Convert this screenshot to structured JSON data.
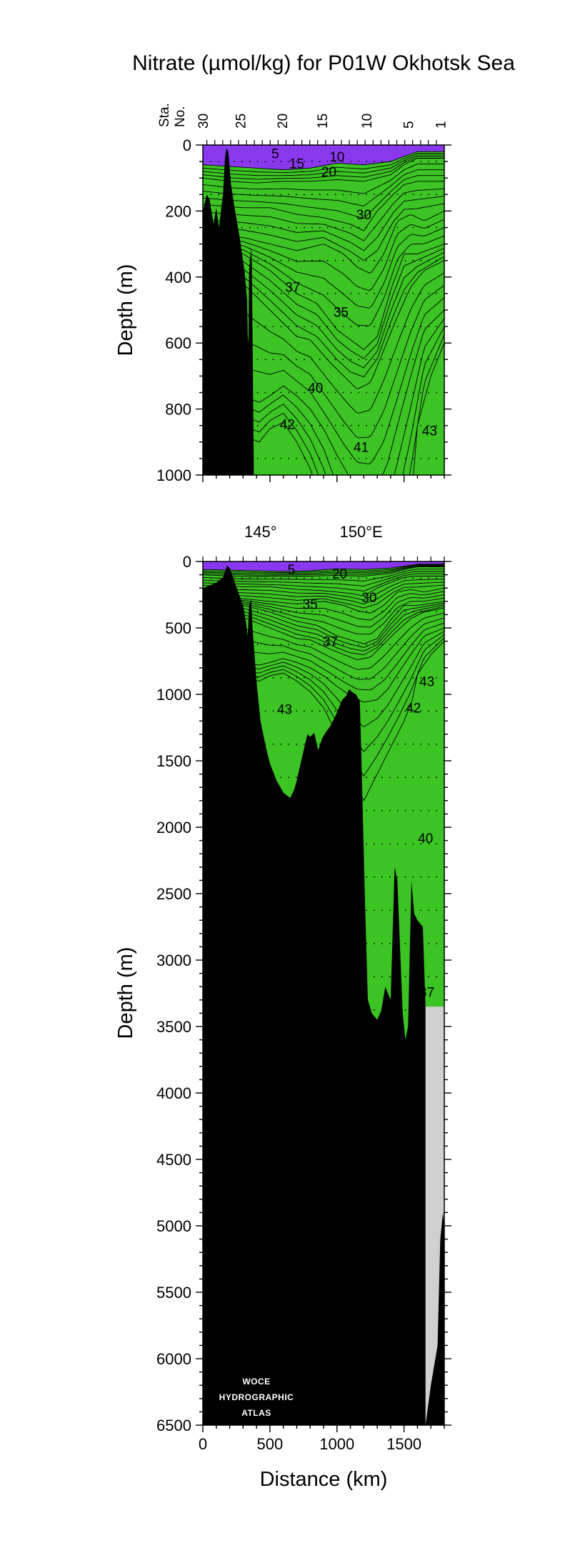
{
  "title": "Nitrate (µmol/kg) for P01W Okhotsk Sea",
  "logo": {
    "line1": "WOCE",
    "line2": "HYDROGRAPHIC",
    "line3": "ATLAS"
  },
  "colors": {
    "nitrate_0_10": "#3cc424",
    "nitrate_10_20": "#59d13a",
    "nitrate_20_30": "#7fdd5e",
    "nitrate_30_35": "#b9f0a6",
    "nitrate_35_37": "#e9d8f8",
    "nitrate_37_40": "#d4b2f6",
    "nitrate_40_42": "#b47cf4",
    "nitrate_42_43": "#9a55f0",
    "nitrate_43_plus": "#8a38ee",
    "bottom": "#000000",
    "no_data": "#d0d0d0"
  },
  "chart_data": [
    {
      "type": "heatmap",
      "name": "upper-section",
      "title": "Nitrate (µmol/kg) for P01W Okhotsk Sea",
      "ylabel": "Depth (m)",
      "xlabel": "",
      "xlim": [
        0,
        1800
      ],
      "ylim": [
        1000,
        0
      ],
      "y_ticks": [
        0,
        200,
        400,
        600,
        800,
        1000
      ],
      "station_axis_label": [
        "Sta.",
        "No."
      ],
      "station_ticks": [
        {
          "label": "30",
          "km": 0
        },
        {
          "label": "25",
          "km": 280
        },
        {
          "label": "20",
          "km": 590
        },
        {
          "label": "15",
          "km": 890
        },
        {
          "label": "10",
          "km": 1220
        },
        {
          "label": "5",
          "km": 1530
        },
        {
          "label": "1",
          "km": 1770
        }
      ],
      "contour_labels": [
        {
          "text": "5",
          "km": 540,
          "depth": 25
        },
        {
          "text": "10",
          "km": 1000,
          "depth": 35
        },
        {
          "text": "15",
          "km": 700,
          "depth": 55
        },
        {
          "text": "20",
          "km": 940,
          "depth": 80
        },
        {
          "text": "30",
          "km": 1200,
          "depth": 210
        },
        {
          "text": "37",
          "km": 670,
          "depth": 430
        },
        {
          "text": "35",
          "km": 1030,
          "depth": 505
        },
        {
          "text": "40",
          "km": 840,
          "depth": 735
        },
        {
          "text": "42",
          "km": 630,
          "depth": 845
        },
        {
          "text": "41",
          "km": 1180,
          "depth": 915
        },
        {
          "text": "43",
          "km": 1690,
          "depth": 865
        }
      ],
      "bottom_profile": [
        [
          0,
          200
        ],
        [
          30,
          150
        ],
        [
          50,
          165
        ],
        [
          80,
          240
        ],
        [
          100,
          190
        ],
        [
          120,
          250
        ],
        [
          150,
          150
        ],
        [
          165,
          40
        ],
        [
          175,
          10
        ],
        [
          190,
          20
        ],
        [
          210,
          120
        ],
        [
          240,
          200
        ],
        [
          275,
          280
        ],
        [
          310,
          380
        ],
        [
          330,
          470
        ],
        [
          335,
          580
        ],
        [
          340,
          600
        ],
        [
          345,
          380
        ],
        [
          360,
          310
        ],
        [
          365,
          360
        ],
        [
          370,
          560
        ],
        [
          380,
          1000
        ]
      ]
    },
    {
      "type": "heatmap",
      "name": "full-section",
      "ylabel": "Depth (m)",
      "xlabel": "Distance (km)",
      "xlim": [
        0,
        1800
      ],
      "ylim": [
        6500,
        0
      ],
      "x_ticks": [
        0,
        500,
        1000,
        1500
      ],
      "y_ticks": [
        0,
        500,
        1000,
        1500,
        2000,
        2500,
        3000,
        3500,
        4000,
        4500,
        5000,
        5500,
        6000,
        6500
      ],
      "longitude_ticks": [
        {
          "label": "145°",
          "km": 430
        },
        {
          "label": "150°E",
          "km": 1180
        }
      ],
      "contour_labels": [
        {
          "text": "5",
          "km": 660,
          "depth": 60
        },
        {
          "text": "20",
          "km": 1020,
          "depth": 90
        },
        {
          "text": "35",
          "km": 800,
          "depth": 320
        },
        {
          "text": "30",
          "km": 1240,
          "depth": 270
        },
        {
          "text": "37",
          "km": 950,
          "depth": 600
        },
        {
          "text": "43",
          "km": 1670,
          "depth": 900
        },
        {
          "text": "43",
          "km": 610,
          "depth": 1110
        },
        {
          "text": "42",
          "km": 1570,
          "depth": 1100
        },
        {
          "text": "40",
          "km": 1660,
          "depth": 2080
        },
        {
          "text": "37",
          "km": 1670,
          "depth": 3240
        }
      ],
      "no_data_region_depth": 3350,
      "bottom_profile": [
        [
          0,
          200
        ],
        [
          100,
          160
        ],
        [
          150,
          120
        ],
        [
          180,
          30
        ],
        [
          200,
          50
        ],
        [
          260,
          220
        ],
        [
          300,
          330
        ],
        [
          320,
          450
        ],
        [
          335,
          560
        ],
        [
          345,
          330
        ],
        [
          360,
          280
        ],
        [
          370,
          500
        ],
        [
          400,
          900
        ],
        [
          430,
          1200
        ],
        [
          470,
          1400
        ],
        [
          500,
          1520
        ],
        [
          550,
          1650
        ],
        [
          600,
          1740
        ],
        [
          650,
          1780
        ],
        [
          680,
          1720
        ],
        [
          700,
          1650
        ],
        [
          740,
          1470
        ],
        [
          780,
          1300
        ],
        [
          800,
          1320
        ],
        [
          830,
          1290
        ],
        [
          860,
          1420
        ],
        [
          890,
          1330
        ],
        [
          920,
          1280
        ],
        [
          950,
          1240
        ],
        [
          990,
          1160
        ],
        [
          1010,
          1110
        ],
        [
          1040,
          1040
        ],
        [
          1070,
          1010
        ],
        [
          1090,
          960
        ],
        [
          1110,
          980
        ],
        [
          1140,
          1000
        ],
        [
          1170,
          1050
        ],
        [
          1180,
          1400
        ],
        [
          1210,
          2600
        ],
        [
          1230,
          3300
        ],
        [
          1260,
          3400
        ],
        [
          1300,
          3450
        ],
        [
          1330,
          3380
        ],
        [
          1360,
          3200
        ],
        [
          1400,
          3300
        ],
        [
          1430,
          2300
        ],
        [
          1450,
          2400
        ],
        [
          1470,
          2900
        ],
        [
          1490,
          3400
        ],
        [
          1510,
          3600
        ],
        [
          1530,
          3500
        ],
        [
          1555,
          2400
        ],
        [
          1575,
          2650
        ],
        [
          1600,
          2700
        ],
        [
          1640,
          2750
        ],
        [
          1660,
          3350
        ],
        [
          1660,
          6500
        ],
        [
          1700,
          6200
        ],
        [
          1750,
          5900
        ],
        [
          1770,
          5100
        ],
        [
          1790,
          4900
        ],
        [
          1800,
          5000
        ]
      ]
    }
  ]
}
